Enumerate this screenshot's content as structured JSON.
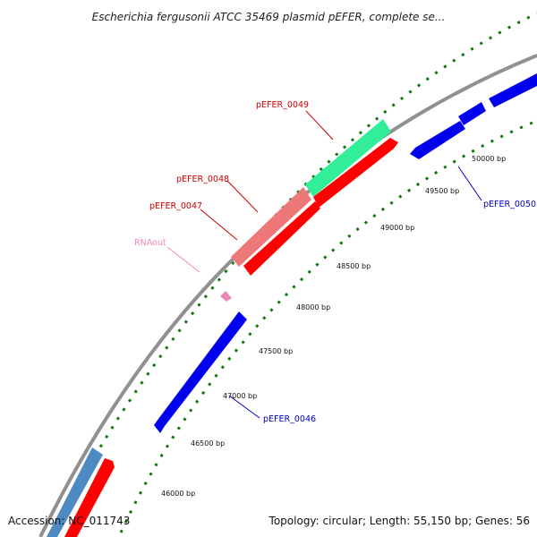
{
  "title": "Escherichia fergusonii ATCC 35469 plasmid pEFER, complete se...",
  "footer": {
    "accession": "Accession: NC_011743",
    "summary": "Topology: circular; Length: 55,150 bp; Genes: 56"
  },
  "colors": {
    "backbone": "#8c8c8c",
    "forward_cds": "#ff0000",
    "reverse_cds": "#0000ee",
    "highlight_forward": "#33ee99",
    "highlight_salmon": "#ee7777",
    "rna": "#ee88bb",
    "steelblue": "#4d8ac4",
    "gc_ticks": "#117711"
  },
  "ruler_ticks": [
    {
      "label": "46000 bp"
    },
    {
      "label": "46500 bp"
    },
    {
      "label": "47000 bp"
    },
    {
      "label": "47500 bp"
    },
    {
      "label": "48000 bp"
    },
    {
      "label": "48500 bp"
    },
    {
      "label": "49000 bp"
    },
    {
      "label": "49500 bp"
    },
    {
      "label": "50000 bp"
    }
  ],
  "gene_labels": [
    {
      "name": "pEFER_0049",
      "color": "#cc0000"
    },
    {
      "name": "pEFER_0048",
      "color": "#cc0000"
    },
    {
      "name": "pEFER_0047",
      "color": "#cc0000"
    },
    {
      "name": "RNAout",
      "color": "#ee88bb"
    },
    {
      "name": "pEFER_0046",
      "color": "#0000bb"
    },
    {
      "name": "pEFER_0050",
      "color": "#0000bb"
    }
  ]
}
